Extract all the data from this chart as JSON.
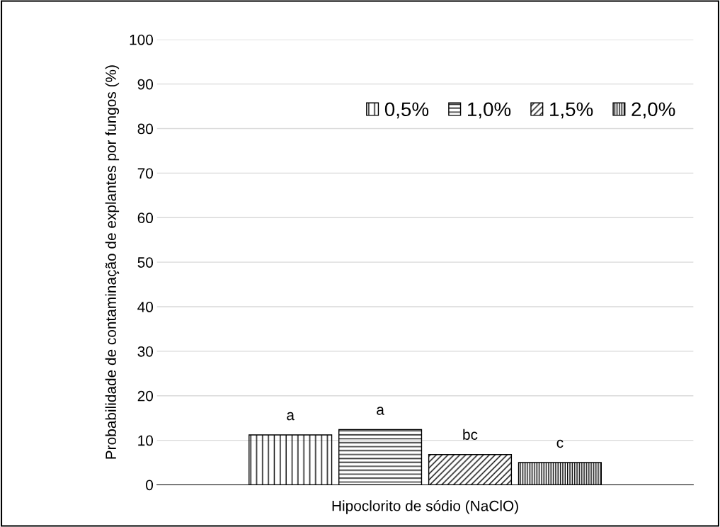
{
  "chart_data": {
    "type": "bar",
    "xlabel": "Hipoclorito de sódio (NaClO)",
    "ylabel": "Probabilidade de contaminação de explantes por fungos (%)",
    "categories": [
      null
    ],
    "series": [
      {
        "name": "0,5%",
        "color": "#000000",
        "values": [
          11.2
        ],
        "value_labels": [
          "a"
        ]
      },
      {
        "name": "1,0%",
        "color": "#000000",
        "values": [
          12.4
        ],
        "value_labels": [
          "a"
        ]
      },
      {
        "name": "1,5%",
        "color": "#000000",
        "values": [
          6.8
        ],
        "value_labels": [
          "bc"
        ]
      },
      {
        "name": "2,0%",
        "color": "#000000",
        "values": [
          5.0
        ],
        "value_labels": [
          "c"
        ]
      }
    ],
    "ylim": [
      0,
      100
    ],
    "yticks": [
      0,
      10,
      20,
      30,
      40,
      50,
      60,
      70,
      80,
      90,
      100
    ],
    "grid": "y",
    "legend": "top right"
  }
}
